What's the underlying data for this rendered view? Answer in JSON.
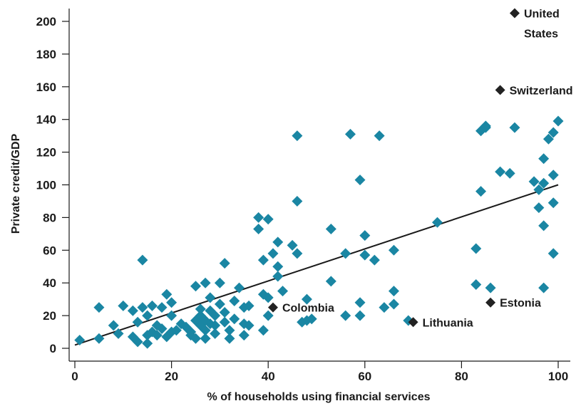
{
  "chart_data": {
    "type": "scatter",
    "title": "",
    "xlabel": "% of households using financial services",
    "ylabel": "Private credit/GDP",
    "xlim": [
      0,
      100
    ],
    "ylim": [
      0,
      200
    ],
    "x_ticks": [
      "0",
      "20",
      "40",
      "60",
      "80",
      "100"
    ],
    "y_ticks": [
      "0",
      "20",
      "40",
      "60",
      "80",
      "100",
      "120",
      "140",
      "160",
      "180",
      "200"
    ],
    "grid": false,
    "legend": "none",
    "colors": {
      "points": "#1a86a3",
      "highlight": "#222222",
      "trend": "#1a1a1a"
    },
    "trendline": {
      "x": [
        0,
        100
      ],
      "y": [
        2,
        100
      ]
    },
    "points": [
      [
        1,
        5
      ],
      [
        5,
        6
      ],
      [
        5,
        25
      ],
      [
        8,
        14
      ],
      [
        9,
        9
      ],
      [
        10,
        26
      ],
      [
        12,
        7
      ],
      [
        12,
        23
      ],
      [
        13,
        4
      ],
      [
        13,
        16
      ],
      [
        14,
        54
      ],
      [
        14,
        25
      ],
      [
        15,
        8
      ],
      [
        15,
        3
      ],
      [
        15,
        20
      ],
      [
        16,
        10
      ],
      [
        16,
        26
      ],
      [
        17,
        14
      ],
      [
        17,
        8
      ],
      [
        18,
        25
      ],
      [
        18,
        12
      ],
      [
        19,
        33
      ],
      [
        19,
        7
      ],
      [
        20,
        28
      ],
      [
        20,
        20
      ],
      [
        20,
        10
      ],
      [
        21,
        11
      ],
      [
        22,
        15
      ],
      [
        23,
        13
      ],
      [
        24,
        8
      ],
      [
        24,
        10
      ],
      [
        25,
        38
      ],
      [
        25,
        17
      ],
      [
        25,
        6
      ],
      [
        26,
        24
      ],
      [
        26,
        20
      ],
      [
        26,
        14
      ],
      [
        27,
        40
      ],
      [
        27,
        17
      ],
      [
        27,
        11
      ],
      [
        27,
        6
      ],
      [
        28,
        31
      ],
      [
        28,
        23
      ],
      [
        28,
        15
      ],
      [
        29,
        20
      ],
      [
        29,
        14
      ],
      [
        29,
        9
      ],
      [
        30,
        40
      ],
      [
        30,
        27
      ],
      [
        31,
        52
      ],
      [
        31,
        22
      ],
      [
        31,
        16
      ],
      [
        32,
        11
      ],
      [
        32,
        6
      ],
      [
        33,
        29
      ],
      [
        33,
        18
      ],
      [
        34,
        37
      ],
      [
        35,
        25
      ],
      [
        35,
        15
      ],
      [
        35,
        8
      ],
      [
        36,
        26
      ],
      [
        36,
        14
      ],
      [
        38,
        80
      ],
      [
        38,
        73
      ],
      [
        39,
        54
      ],
      [
        39,
        33
      ],
      [
        39,
        11
      ],
      [
        40,
        79
      ],
      [
        40,
        31
      ],
      [
        40,
        20
      ],
      [
        41,
        58
      ],
      [
        42,
        65
      ],
      [
        42,
        50
      ],
      [
        42,
        44
      ],
      [
        43,
        35
      ],
      [
        45,
        63
      ],
      [
        46,
        130
      ],
      [
        46,
        90
      ],
      [
        46,
        58
      ],
      [
        47,
        16
      ],
      [
        48,
        30
      ],
      [
        48,
        17
      ],
      [
        49,
        18
      ],
      [
        53,
        73
      ],
      [
        53,
        41
      ],
      [
        56,
        58
      ],
      [
        56,
        20
      ],
      [
        57,
        131
      ],
      [
        59,
        103
      ],
      [
        59,
        28
      ],
      [
        59,
        20
      ],
      [
        60,
        69
      ],
      [
        60,
        57
      ],
      [
        62,
        54
      ],
      [
        63,
        130
      ],
      [
        64,
        25
      ],
      [
        66,
        60
      ],
      [
        66,
        35
      ],
      [
        66,
        27
      ],
      [
        69,
        17
      ],
      [
        75,
        77
      ],
      [
        83,
        61
      ],
      [
        83,
        39
      ],
      [
        84,
        133
      ],
      [
        84,
        96
      ],
      [
        85,
        135
      ],
      [
        85,
        136
      ],
      [
        86,
        37
      ],
      [
        88,
        108
      ],
      [
        90,
        107
      ],
      [
        91,
        135
      ],
      [
        95,
        102
      ],
      [
        96,
        97
      ],
      [
        96,
        86
      ],
      [
        97,
        101
      ],
      [
        97,
        116
      ],
      [
        97,
        75
      ],
      [
        97,
        37
      ],
      [
        98,
        128
      ],
      [
        99,
        132
      ],
      [
        99,
        106
      ],
      [
        99,
        89
      ],
      [
        99,
        58
      ],
      [
        100,
        139
      ]
    ],
    "highlights": [
      {
        "label": "United\nStates",
        "x": 91,
        "y": 205,
        "label_pos": "right-wrap"
      },
      {
        "label": "Switzerland",
        "x": 88,
        "y": 158,
        "label_pos": "right"
      },
      {
        "label": "Estonia",
        "x": 86,
        "y": 28,
        "label_pos": "right"
      },
      {
        "label": "Colombia",
        "x": 41,
        "y": 25,
        "label_pos": "right"
      },
      {
        "label": "Lithuania",
        "x": 70,
        "y": 16,
        "label_pos": "right"
      }
    ]
  }
}
